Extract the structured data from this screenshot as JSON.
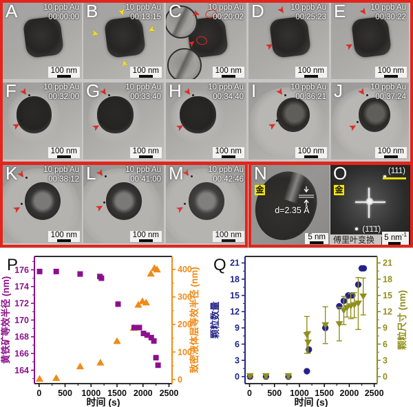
{
  "tem_panels": [
    {
      "id": "A",
      "dose_label": "10 ppb Au",
      "timestamp": "00:00:00",
      "scale_label": "100 nm",
      "arrow_color": null
    },
    {
      "id": "B",
      "dose_label": "10 ppb Au",
      "timestamp": "00:13:15",
      "scale_label": "100 nm",
      "arrow_color": "#f5df14"
    },
    {
      "id": "C",
      "dose_label": "10 ppb Au",
      "timestamp": "00:20:02",
      "scale_label": "100 nm",
      "arrow_color": "#e8251f"
    },
    {
      "id": "D",
      "dose_label": "10 ppb Au",
      "timestamp": "00:25:23",
      "scale_label": "100 nm",
      "arrow_color": "#e8251f"
    },
    {
      "id": "E",
      "dose_label": "10 ppb Au",
      "timestamp": "00:30:22",
      "scale_label": "100 nm",
      "arrow_color": "#e8251f"
    },
    {
      "id": "F",
      "dose_label": "10 ppb Au",
      "timestamp": "00:32:00",
      "scale_label": "100 nm",
      "arrow_color": "#e8251f"
    },
    {
      "id": "G",
      "dose_label": "10 ppb Au",
      "timestamp": "00:33:40",
      "scale_label": "100 nm",
      "arrow_color": "#e8251f"
    },
    {
      "id": "H",
      "dose_label": "10 ppb Au",
      "timestamp": "00:34:40",
      "scale_label": "100 nm",
      "arrow_color": "#e8251f"
    },
    {
      "id": "I",
      "dose_label": "10 ppb Au",
      "timestamp": "00:36:21",
      "scale_label": "100 nm",
      "arrow_color": "#e8251f"
    },
    {
      "id": "J",
      "dose_label": "10 ppb Au",
      "timestamp": "00:37:24",
      "scale_label": "100 nm",
      "arrow_color": "#e8251f"
    },
    {
      "id": "K",
      "dose_label": "10 ppb Au",
      "timestamp": "00:38:12",
      "scale_label": "100 nm",
      "arrow_color": "#e8251f"
    },
    {
      "id": "L",
      "dose_label": "10 ppb Au",
      "timestamp": "00:41:00",
      "scale_label": "100 nm",
      "arrow_color": "#e8251f"
    },
    {
      "id": "M",
      "dose_label": "10 ppb Au",
      "timestamp": "00:42:46",
      "scale_label": "100 nm",
      "arrow_color": "#e8251f"
    }
  ],
  "panel_n": {
    "id": "N",
    "badge": "金",
    "d_spacing": "d=2.35 Å",
    "scale_label": "5 nm"
  },
  "panel_o": {
    "id": "O",
    "badge": "金",
    "plane_top": "(111)",
    "plane_bottom": "(1̄1̄1̄)",
    "caption": "傅里叶变换",
    "scale_label": "5 nm",
    "scale_exp": "-1"
  },
  "chart_data": [
    {
      "id": "P",
      "type": "scatter",
      "xlabel": "时间 (s)",
      "x_ticks": [
        0,
        500,
        1000,
        1500,
        2000,
        2500
      ],
      "x_minor_step": 250,
      "xlim": [
        -90,
        2560
      ],
      "axes": {
        "left": {
          "label": "黄铁矿等效半径 (nm)",
          "color": "#8d0f8d",
          "ticks": [
            164,
            166,
            168,
            170,
            172,
            174,
            176
          ],
          "minor_step": 1,
          "lim": [
            162.4,
            177.6
          ]
        },
        "right": {
          "label": "致密液体层等效半径 (nm)",
          "color": "#f08a16",
          "ticks": [
            0,
            100,
            200,
            300,
            400
          ],
          "minor_step": 50,
          "lim": [
            -15,
            447
          ]
        }
      },
      "series": [
        {
          "key": "dense-liquid-layer-radius",
          "name": "致密液体层等效半径",
          "axis": "right",
          "marker": "triangle-up",
          "color": "#f08a16",
          "points": [
            [
              10,
              3
            ],
            [
              330,
              6
            ],
            [
              790,
              48
            ],
            [
              1180,
              62
            ],
            [
              1500,
              140
            ],
            [
              1820,
              188
            ],
            [
              1910,
              272
            ],
            [
              1990,
              285
            ],
            [
              2060,
              280
            ],
            [
              2150,
              385
            ],
            [
              2220,
              405
            ],
            [
              2270,
              400
            ]
          ]
        },
        {
          "key": "pyrite-radius",
          "name": "黄铁矿等效半径",
          "axis": "left",
          "marker": "square",
          "color": "#8d0f8d",
          "points": [
            [
              10,
              175.8
            ],
            [
              330,
              175.8
            ],
            [
              790,
              175.5
            ],
            [
              1170,
              175.2
            ],
            [
              1200,
              175.0
            ],
            [
              1520,
              171.9
            ],
            [
              1830,
              169.1
            ],
            [
              1930,
              169.1
            ],
            [
              2010,
              168.4
            ],
            [
              2080,
              168.2
            ],
            [
              2160,
              167.9
            ],
            [
              2210,
              167.5
            ],
            [
              2250,
              165.5
            ],
            [
              2290,
              164.6
            ]
          ]
        }
      ]
    },
    {
      "id": "Q",
      "type": "scatter",
      "xlabel": "时间 (s)",
      "x_ticks": [
        0,
        500,
        1000,
        1500,
        2000,
        2500
      ],
      "x_minor_step": 250,
      "xlim": [
        -90,
        2560
      ],
      "axes": {
        "left": {
          "label": "颗粒数量",
          "color": "#22228a",
          "ticks": [
            0,
            3,
            6,
            9,
            12,
            15,
            18,
            21
          ],
          "minor_step": 1.5,
          "lim": [
            -1.3,
            22.2
          ]
        },
        "right": {
          "label": "颗粒尺寸 (nm)",
          "color": "#8f8f1d",
          "ticks": [
            0,
            3,
            6,
            9,
            12,
            15,
            18,
            21
          ],
          "minor_step": 1.5,
          "lim": [
            -1.3,
            22.2
          ]
        }
      },
      "series": [
        {
          "key": "particle-count",
          "name": "颗粒数量",
          "axis": "left",
          "marker": "circle",
          "color": "#22228a",
          "points": [
            [
              10,
              0
            ],
            [
              330,
              0
            ],
            [
              780,
              0
            ],
            [
              1150,
              1
            ],
            [
              1190,
              5
            ],
            [
              1520,
              9
            ],
            [
              1800,
              13
            ],
            [
              1890,
              14
            ],
            [
              1980,
              15
            ],
            [
              2060,
              15
            ],
            [
              2180,
              17
            ],
            [
              2250,
              20
            ],
            [
              2290,
              20
            ]
          ]
        },
        {
          "key": "particle-size",
          "name": "颗粒尺寸",
          "axis": "right",
          "marker": "triangle-down",
          "color": "#8f8f1d",
          "error_bars": true,
          "points": [
            [
              10,
              0.1,
              0.2
            ],
            [
              330,
              0.1,
              0.4
            ],
            [
              780,
              0.1,
              0.4
            ],
            [
              1150,
              7.7,
              3.4
            ],
            [
              1175,
              6.3,
              2.0
            ],
            [
              1520,
              9.5,
              3.4
            ],
            [
              1800,
              9.7,
              3.1
            ],
            [
              1890,
              12.2,
              2.6
            ],
            [
              1955,
              12.7,
              1.7
            ],
            [
              2030,
              13.0,
              2.3
            ],
            [
              2100,
              13.2,
              2.3
            ],
            [
              2180,
              13.5,
              4.8
            ],
            [
              2280,
              14.8,
              3.4
            ]
          ]
        }
      ]
    }
  ]
}
